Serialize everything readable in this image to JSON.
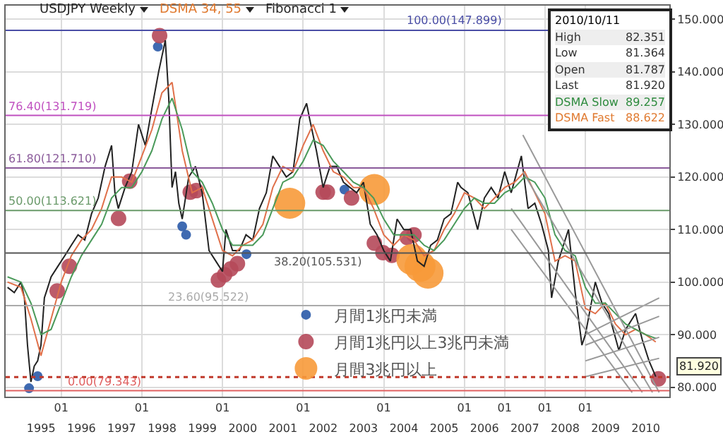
{
  "chart_data": {
    "type": "line",
    "annotations": [
      "USDJPY Weekly",
      "DSMA 34, 55",
      "Fibonacci 1",
      "2010/10/11",
      "High",
      "82.351",
      "Low",
      "81.364",
      "Open",
      "81.787",
      "Last",
      "81.920",
      "DSMA Slow",
      "89.257",
      "DSMA Fast",
      "88.622"
    ],
    "xlim": [
      "1994-08-15",
      "2011-02-01"
    ],
    "xticks": [
      {
        "value": "1996-01-01",
        "label": "01"
      },
      {
        "value": "1998-01-01",
        "label": "01"
      },
      {
        "value": "2000-01-01",
        "label": "01"
      },
      {
        "value": "2002-01-01",
        "label": "01"
      },
      {
        "value": "2004-01-01",
        "label": "01"
      },
      {
        "value": "2006-01-01",
        "label": "01"
      },
      {
        "value": "2007-01-01",
        "label": "01"
      },
      {
        "value": "2008-01-01",
        "label": "01"
      },
      {
        "value": "2009-01-01",
        "label": "01"
      }
    ],
    "x2lim": [
      "1994-08-15",
      "2011-02-01"
    ],
    "x2ticks": [
      {
        "value": "1995-07-02",
        "label": "1995"
      },
      {
        "value": "1996-07-02",
        "label": "1996"
      },
      {
        "value": "1997-07-02",
        "label": "1997"
      },
      {
        "value": "1998-07-02",
        "label": "1998"
      },
      {
        "value": "1999-07-02",
        "label": "1999"
      },
      {
        "value": "2000-07-02",
        "label": "2000"
      },
      {
        "value": "2001-07-02",
        "label": "2001"
      },
      {
        "value": "2002-07-02",
        "label": "2002"
      },
      {
        "value": "2003-07-02",
        "label": "2003"
      },
      {
        "value": "2004-07-02",
        "label": "2004"
      },
      {
        "value": "2005-07-02",
        "label": "2005"
      },
      {
        "value": "2006-07-02",
        "label": "2006"
      },
      {
        "value": "2007-07-02",
        "label": "2007"
      },
      {
        "value": "2008-07-02",
        "label": "2008"
      },
      {
        "value": "2009-07-02",
        "label": "2009"
      },
      {
        "value": "2010-07-02",
        "label": "2010"
      }
    ],
    "ylim": [
      78.2,
      152.6
    ],
    "yticks": [
      {
        "value": 80,
        "label": "80.000"
      },
      {
        "value": 90,
        "label": "90.000"
      },
      {
        "value": 100,
        "label": "100.000"
      },
      {
        "value": 110,
        "label": "110.000"
      },
      {
        "value": 120,
        "label": "120.000"
      },
      {
        "value": 130,
        "label": "130.000"
      },
      {
        "value": 140,
        "label": "140.000"
      },
      {
        "value": 150,
        "label": "150.000"
      }
    ],
    "grid": true,
    "legend": "bottom",
    "ref_lines": [
      {
        "axis": "y",
        "value": 147.899,
        "label": "100.00(147.899)",
        "color": "#4b4fa6"
      },
      {
        "axis": "y",
        "value": 131.719,
        "label": "76.40(131.719)",
        "color": "#c050c0"
      },
      {
        "axis": "y",
        "value": 121.71,
        "label": "61.80(121.710)",
        "color": "#8a5a9a"
      },
      {
        "axis": "y",
        "value": 113.621,
        "label": "50.00(113.621)",
        "color": "#6a9a6a"
      },
      {
        "axis": "y",
        "value": 105.531,
        "label": "38.20(105.531)",
        "color": "#555555"
      },
      {
        "axis": "y",
        "value": 95.522,
        "label": "23.60(95.522)",
        "color": "#aaaaaa"
      },
      {
        "axis": "y",
        "value": 79.343,
        "label": "0.00(79.343)",
        "color": "#e06060"
      },
      {
        "axis": "y",
        "value": 81.92,
        "label": "81.920",
        "color": "#c0392b",
        "line_style": "dotted"
      }
    ],
    "series": [
      {
        "color": "#222222",
        "x": [
          "1994-09",
          "1994-11",
          "1995-01",
          "1995-02",
          "1995-03",
          "1995-04",
          "1995-05",
          "1995-06",
          "1995-07",
          "1995-08",
          "1995-09",
          "1995-10",
          "1995-12",
          "1996-02",
          "1996-04",
          "1996-06",
          "1996-08",
          "1996-10",
          "1996-12",
          "1997-02",
          "1997-04",
          "1997-05",
          "1997-06",
          "1997-08",
          "1997-10",
          "1997-12",
          "1998-02",
          "1998-04",
          "1998-06",
          "1998-08",
          "1998-09",
          "1998-10",
          "1998-11",
          "1998-12",
          "1999-01",
          "1999-03",
          "1999-05",
          "1999-07",
          "1999-09",
          "1999-11",
          "2000-01",
          "2000-02",
          "2000-04",
          "2000-06",
          "2000-08",
          "2000-10",
          "2000-12",
          "2001-02",
          "2001-04",
          "2001-06",
          "2001-08",
          "2001-10",
          "2001-12",
          "2002-02",
          "2002-03",
          "2002-05",
          "2002-07",
          "2002-09",
          "2002-11",
          "2003-01",
          "2003-03",
          "2003-05",
          "2003-07",
          "2003-09",
          "2003-11",
          "2004-01",
          "2004-03",
          "2004-05",
          "2004-07",
          "2004-09",
          "2004-11",
          "2005-01",
          "2005-03",
          "2005-05",
          "2005-07",
          "2005-09",
          "2005-11",
          "2005-12",
          "2006-02",
          "2006-05",
          "2006-07",
          "2006-09",
          "2006-11",
          "2007-01",
          "2007-03",
          "2007-06",
          "2007-08",
          "2007-10",
          "2007-12",
          "2008-02",
          "2008-03",
          "2008-05",
          "2008-08",
          "2008-10",
          "2008-12",
          "2009-01",
          "2009-04",
          "2009-06",
          "2009-08",
          "2009-11",
          "2010-01",
          "2010-04",
          "2010-06",
          "2010-08",
          "2010-10"
        ],
        "values": [
          99,
          98,
          100,
          97,
          88,
          81,
          84,
          85,
          88,
          97,
          99,
          101,
          103,
          105,
          107,
          109,
          108,
          113,
          116,
          122,
          126,
          117,
          114,
          118,
          121,
          130,
          126,
          133,
          140,
          146,
          135,
          118,
          121,
          115,
          112,
          120,
          122,
          117,
          106,
          104,
          102,
          110,
          106,
          106,
          109,
          108,
          114,
          117,
          124,
          122,
          120,
          121,
          131,
          134,
          131,
          125,
          118,
          122,
          122,
          119,
          118,
          117,
          119,
          111,
          109,
          106,
          104,
          112,
          110,
          110,
          104,
          103,
          107,
          108,
          112,
          113,
          119,
          118,
          117,
          110,
          116,
          118,
          116,
          121,
          117,
          124,
          114,
          115,
          111,
          106,
          97,
          104,
          110,
          98,
          88,
          90,
          100,
          96,
          94,
          87,
          91,
          94,
          89,
          85,
          82
        ]
      },
      {
        "color": "#e0704a",
        "x": [
          "1994-09",
          "1995-01",
          "1995-04",
          "1995-07",
          "1995-10",
          "1996-01",
          "1996-04",
          "1996-07",
          "1996-10",
          "1997-01",
          "1997-04",
          "1997-07",
          "1997-10",
          "1998-01",
          "1998-04",
          "1998-07",
          "1998-10",
          "1999-01",
          "1999-04",
          "1999-07",
          "1999-10",
          "2000-01",
          "2000-04",
          "2000-07",
          "2000-10",
          "2001-01",
          "2001-04",
          "2001-07",
          "2001-10",
          "2002-01",
          "2002-04",
          "2002-07",
          "2002-10",
          "2003-01",
          "2003-04",
          "2003-07",
          "2003-10",
          "2004-01",
          "2004-04",
          "2004-07",
          "2004-10",
          "2005-01",
          "2005-04",
          "2005-07",
          "2005-10",
          "2006-01",
          "2006-04",
          "2006-07",
          "2006-10",
          "2007-01",
          "2007-04",
          "2007-07",
          "2007-10",
          "2008-01",
          "2008-04",
          "2008-07",
          "2008-10",
          "2009-01",
          "2009-04",
          "2009-07",
          "2009-10",
          "2010-01",
          "2010-04",
          "2010-07",
          "2010-10"
        ],
        "values": [
          100,
          99,
          93,
          86,
          93,
          100,
          105,
          108,
          110,
          114,
          120,
          120,
          119,
          124,
          129,
          136,
          138,
          125,
          117,
          118,
          112,
          106,
          105,
          107,
          108,
          111,
          118,
          122,
          121,
          126,
          130,
          125,
          121,
          120,
          118,
          118,
          114,
          109,
          107,
          109,
          108,
          105,
          106,
          110,
          113,
          117,
          116,
          114,
          116,
          118,
          119,
          121,
          117,
          113,
          104,
          105,
          104,
          95,
          94,
          96,
          92,
          90,
          91,
          90,
          88.6
        ]
      },
      {
        "color": "#4a9a5a",
        "x": [
          "1994-09",
          "1995-01",
          "1995-04",
          "1995-07",
          "1995-10",
          "1996-01",
          "1996-04",
          "1996-07",
          "1996-10",
          "1997-01",
          "1997-04",
          "1997-07",
          "1997-10",
          "1998-01",
          "1998-04",
          "1998-07",
          "1998-10",
          "1999-01",
          "1999-04",
          "1999-07",
          "1999-10",
          "2000-01",
          "2000-04",
          "2000-07",
          "2000-10",
          "2001-01",
          "2001-04",
          "2001-07",
          "2001-10",
          "2002-01",
          "2002-04",
          "2002-07",
          "2002-10",
          "2003-01",
          "2003-04",
          "2003-07",
          "2003-10",
          "2004-01",
          "2004-04",
          "2004-07",
          "2004-10",
          "2005-01",
          "2005-04",
          "2005-07",
          "2005-10",
          "2006-01",
          "2006-04",
          "2006-07",
          "2006-10",
          "2007-01",
          "2007-04",
          "2007-07",
          "2007-10",
          "2008-01",
          "2008-04",
          "2008-07",
          "2008-10",
          "2009-01",
          "2009-04",
          "2009-07",
          "2009-10",
          "2010-01",
          "2010-04",
          "2010-07",
          "2010-10"
        ],
        "values": [
          101,
          100,
          96,
          90,
          91,
          96,
          101,
          105,
          108,
          111,
          116,
          118,
          118,
          121,
          125,
          131,
          135,
          129,
          121,
          119,
          115,
          110,
          107,
          107,
          107,
          109,
          114,
          119,
          120,
          123,
          127,
          126,
          123,
          121,
          119,
          118,
          116,
          112,
          109,
          109,
          109,
          107,
          106,
          108,
          111,
          114,
          116,
          115,
          115,
          117,
          118,
          120,
          119,
          116,
          109,
          106,
          105,
          99,
          96,
          96,
          94,
          92,
          91,
          90,
          89.3
        ]
      },
      {
        "color": "#999999",
        "x": [
          "2007-06-15",
          "2010-11-01"
        ],
        "values": [
          128,
          79
        ]
      },
      {
        "color": "#999999",
        "x": [
          "2007-06-15",
          "2010-09-01"
        ],
        "values": [
          121,
          79
        ]
      },
      {
        "color": "#999999",
        "x": [
          "2007-03-01",
          "2010-06-01"
        ],
        "values": [
          114,
          79
        ]
      },
      {
        "color": "#999999",
        "x": [
          "2007-03-01",
          "2010-03-01"
        ],
        "values": [
          110,
          79
        ]
      },
      {
        "color": "#999999",
        "x": [
          "2009-01-01",
          "2010-11-01"
        ],
        "values": [
          90,
          97
        ]
      },
      {
        "color": "#999999",
        "x": [
          "2009-01-01",
          "2010-11-01"
        ],
        "values": [
          88,
          93.5
        ]
      },
      {
        "color": "#999999",
        "x": [
          "2009-01-01",
          "2010-11-01"
        ],
        "values": [
          85,
          89.5
        ]
      },
      {
        "color": "#999999",
        "x": [
          "2009-01-01",
          "2010-11-01"
        ],
        "values": [
          82,
          85.5
        ]
      },
      {
        "type": "bubble",
        "name": "月間1兆円未満",
        "color": "#2a5aa8",
        "x": [
          "1995-03-15",
          "1995-06-01",
          "1998-05-25",
          "1999-01-01",
          "1999-02-05",
          "2000-08-05",
          "2003-01-10"
        ],
        "values": [
          79.8,
          82.1,
          144.8,
          110.6,
          109,
          105.3,
          117.6
        ],
        "sizes": [
          0.1,
          0.1,
          0.1,
          0.1,
          0.1,
          0.1,
          0.1
        ]
      },
      {
        "type": "bubble",
        "name": "月間1兆円以上3兆円未満",
        "color": "#b5495a",
        "x": [
          "1995-11-25",
          "1996-03-15",
          "1997-06-03",
          "1997-09-12",
          "1998-06-10",
          "1999-03-15",
          "1999-05-08",
          "1999-11-25",
          "2000-01-20",
          "2000-03-15",
          "2000-05-15",
          "2002-07-01",
          "2002-08-08",
          "2003-03-15",
          "2003-10-08",
          "2003-12-25",
          "2004-03-15",
          "2004-08-01",
          "2004-10-01",
          "2010-10-25"
        ],
        "values": [
          98.3,
          103,
          112.1,
          119.2,
          146.9,
          117.1,
          117.4,
          100.4,
          101.4,
          102.5,
          103.5,
          117.1,
          117.1,
          116,
          107.4,
          105.6,
          105.1,
          108.5,
          109,
          81.6
        ],
        "sizes": [
          0.25,
          0.25,
          0.25,
          0.25,
          0.25,
          0.25,
          0.25,
          0.25,
          0.25,
          0.25,
          0.25,
          0.25,
          0.25,
          0.25,
          0.25,
          0.25,
          0.25,
          0.25,
          0.25,
          0.25
        ]
      },
      {
        "type": "bubble",
        "name": "月間3兆円以上",
        "color": "#f79a3a",
        "x": [
          "2001-09-01",
          "2003-10-08",
          "2004-09-12",
          "2004-11-25",
          "2005-02-05"
        ],
        "values": [
          115,
          117.6,
          104.3,
          103,
          101.7
        ],
        "sizes": [
          1,
          1,
          1,
          1,
          1
        ]
      }
    ]
  }
}
